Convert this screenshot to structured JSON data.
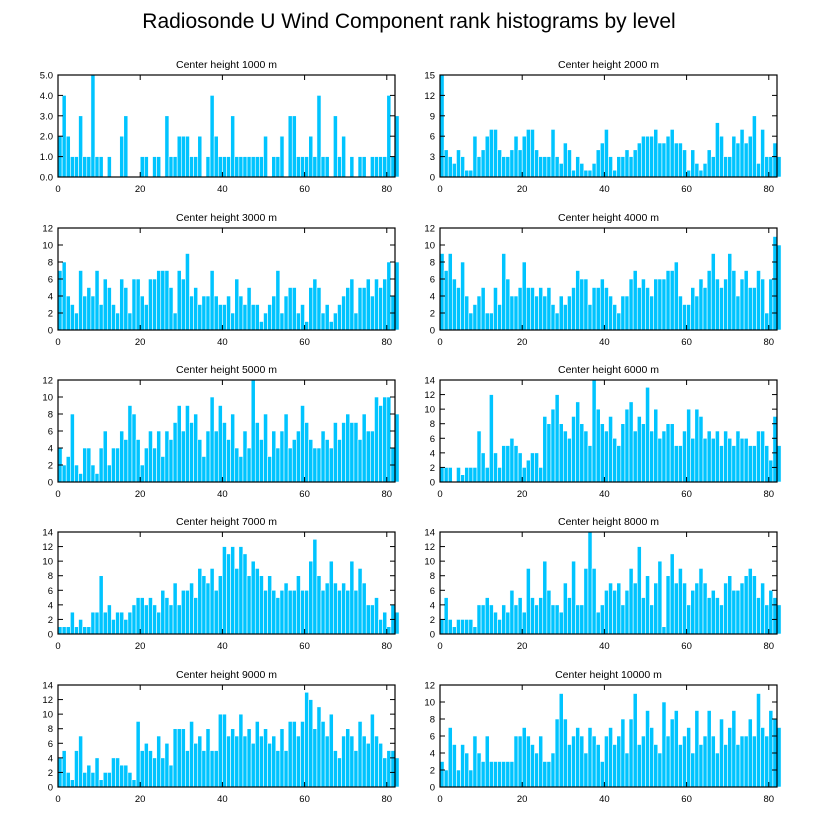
{
  "title": "Radiosonde U Wind Component rank histograms by level",
  "bar_color": "#00c4ff",
  "chart_data": [
    {
      "type": "bar",
      "title": "Center height 1000 m",
      "xlabel": "",
      "ylabel": "",
      "xlim": [
        0,
        82
      ],
      "xticks": [
        0,
        20,
        40,
        60,
        80
      ],
      "ylim": [
        0,
        5
      ],
      "yticks": [
        0,
        1,
        2,
        3,
        4,
        5
      ],
      "ytick_labels": [
        "0.0",
        "1.0",
        "2.0",
        "3.0",
        "4.0",
        "5.0"
      ],
      "values": [
        2,
        4,
        2,
        1,
        1,
        3,
        1,
        1,
        5,
        1,
        1,
        0,
        1,
        0,
        0,
        2,
        3,
        0,
        0,
        0,
        1,
        1,
        0,
        1,
        1,
        0,
        3,
        1,
        1,
        2,
        2,
        2,
        1,
        1,
        2,
        0,
        1,
        4,
        2,
        1,
        1,
        1,
        3,
        1,
        1,
        1,
        1,
        1,
        1,
        1,
        2,
        0,
        1,
        1,
        2,
        0,
        3,
        3,
        1,
        1,
        1,
        2,
        1,
        4,
        1,
        1,
        0,
        3,
        1,
        2,
        0,
        1,
        0,
        1,
        1,
        0,
        1,
        1,
        1,
        1,
        4,
        1,
        3
      ]
    },
    {
      "type": "bar",
      "title": "Center height 2000 m",
      "xlabel": "",
      "ylabel": "",
      "xlim": [
        0,
        82
      ],
      "xticks": [
        0,
        20,
        40,
        60,
        80
      ],
      "ylim": [
        0,
        15
      ],
      "yticks": [
        0,
        3,
        6,
        9,
        12,
        15
      ],
      "ytick_labels": [
        "0",
        "3",
        "6",
        "9",
        "12",
        "15"
      ],
      "values": [
        15,
        4,
        3,
        2,
        4,
        3,
        1,
        1,
        6,
        3,
        4,
        6,
        7,
        7,
        4,
        3,
        3,
        4,
        6,
        4,
        6,
        7,
        7,
        4,
        3,
        3,
        3,
        7,
        3,
        2,
        5,
        4,
        1,
        3,
        2,
        1,
        1,
        2,
        4,
        5,
        7,
        3,
        1,
        3,
        3,
        4,
        3,
        4,
        5,
        6,
        6,
        6,
        7,
        5,
        5,
        6,
        7,
        5,
        5,
        4,
        1,
        4,
        2,
        1,
        2,
        4,
        3,
        8,
        6,
        3,
        3,
        6,
        5,
        7,
        5,
        6,
        9,
        2,
        7,
        3,
        3,
        5,
        3
      ]
    },
    {
      "type": "bar",
      "title": "Center height 3000 m",
      "xlabel": "",
      "ylabel": "",
      "xlim": [
        0,
        82
      ],
      "xticks": [
        0,
        20,
        40,
        60,
        80
      ],
      "ylim": [
        0,
        12
      ],
      "yticks": [
        0,
        2,
        4,
        6,
        8,
        10,
        12
      ],
      "ytick_labels": [
        "0",
        "2",
        "4",
        "6",
        "8",
        "10",
        "12"
      ],
      "values": [
        7,
        8,
        4,
        3,
        2,
        7,
        4,
        5,
        4,
        7,
        3,
        6,
        5,
        3,
        2,
        6,
        5,
        2,
        6,
        6,
        4,
        3,
        6,
        6,
        7,
        7,
        7,
        5,
        2,
        7,
        6,
        9,
        4,
        5,
        3,
        4,
        4,
        7,
        4,
        3,
        3,
        4,
        2,
        6,
        4,
        3,
        5,
        3,
        3,
        1,
        2,
        3,
        4,
        7,
        2,
        4,
        5,
        5,
        2,
        3,
        1,
        5,
        6,
        5,
        2,
        3,
        1,
        2,
        3,
        4,
        5,
        6,
        2,
        5,
        5,
        6,
        4,
        6,
        5,
        6,
        8,
        4,
        8
      ]
    },
    {
      "type": "bar",
      "title": "Center height 4000 m",
      "xlabel": "",
      "ylabel": "",
      "xlim": [
        0,
        82
      ],
      "xticks": [
        0,
        20,
        40,
        60,
        80
      ],
      "ylim": [
        0,
        12
      ],
      "yticks": [
        0,
        2,
        4,
        6,
        8,
        10,
        12
      ],
      "ytick_labels": [
        "0",
        "2",
        "4",
        "6",
        "8",
        "10",
        "12"
      ],
      "values": [
        9,
        7,
        9,
        6,
        5,
        8,
        4,
        2,
        3,
        4,
        5,
        2,
        2,
        5,
        3,
        9,
        6,
        4,
        4,
        5,
        8,
        5,
        5,
        4,
        5,
        4,
        5,
        3,
        2,
        4,
        3,
        4,
        5,
        7,
        6,
        6,
        3,
        5,
        5,
        6,
        5,
        4,
        3,
        2,
        4,
        4,
        6,
        7,
        5,
        6,
        5,
        4,
        6,
        6,
        6,
        7,
        7,
        8,
        4,
        3,
        3,
        5,
        4,
        6,
        5,
        7,
        9,
        6,
        5,
        6,
        9,
        7,
        4,
        6,
        7,
        5,
        5,
        7,
        6,
        2,
        6,
        11,
        10
      ]
    },
    {
      "type": "bar",
      "title": "Center height 5000 m",
      "xlabel": "",
      "ylabel": "",
      "xlim": [
        0,
        82
      ],
      "xticks": [
        0,
        20,
        40,
        60,
        80
      ],
      "ylim": [
        0,
        12
      ],
      "yticks": [
        0,
        2,
        4,
        6,
        8,
        10,
        12
      ],
      "ytick_labels": [
        "0",
        "2",
        "4",
        "6",
        "8",
        "10",
        "12"
      ],
      "values": [
        4,
        2,
        3,
        8,
        2,
        1,
        4,
        4,
        2,
        1,
        4,
        6,
        2,
        4,
        4,
        6,
        5,
        9,
        8,
        5,
        2,
        4,
        6,
        4,
        6,
        3,
        6,
        5,
        7,
        9,
        6,
        9,
        7,
        8,
        5,
        3,
        6,
        10,
        6,
        9,
        7,
        5,
        8,
        4,
        3,
        6,
        4,
        12,
        7,
        5,
        8,
        3,
        6,
        4,
        6,
        8,
        4,
        5,
        6,
        9,
        7,
        5,
        4,
        4,
        6,
        5,
        4,
        7,
        5,
        7,
        8,
        7,
        7,
        5,
        8,
        6,
        6,
        10,
        9,
        10,
        10,
        4,
        8
      ]
    },
    {
      "type": "bar",
      "title": "Center height 6000 m",
      "xlabel": "",
      "ylabel": "",
      "xlim": [
        0,
        82
      ],
      "xticks": [
        0,
        20,
        40,
        60,
        80
      ],
      "ylim": [
        0,
        14
      ],
      "yticks": [
        0,
        2,
        4,
        6,
        8,
        10,
        12,
        14
      ],
      "ytick_labels": [
        "0",
        "2",
        "4",
        "6",
        "8",
        "10",
        "12",
        "14"
      ],
      "values": [
        2,
        2,
        2,
        0,
        2,
        1,
        2,
        2,
        2,
        7,
        4,
        2,
        12,
        4,
        2,
        5,
        5,
        6,
        5,
        4,
        2,
        3,
        4,
        4,
        2,
        9,
        8,
        10,
        12,
        8,
        7,
        6,
        9,
        11,
        8,
        7,
        5,
        14,
        10,
        8,
        7,
        9,
        6,
        5,
        8,
        10,
        11,
        7,
        9,
        8,
        13,
        7,
        10,
        6,
        7,
        8,
        8,
        5,
        5,
        7,
        10,
        6,
        10,
        9,
        6,
        7,
        6,
        7,
        5,
        7,
        6,
        5,
        7,
        6,
        6,
        5,
        5,
        7,
        7,
        5,
        3,
        9,
        5
      ]
    },
    {
      "type": "bar",
      "title": "Center height 7000 m",
      "xlabel": "",
      "ylabel": "",
      "xlim": [
        0,
        82
      ],
      "xticks": [
        0,
        20,
        40,
        60,
        80
      ],
      "ylim": [
        0,
        14
      ],
      "yticks": [
        0,
        2,
        4,
        6,
        8,
        10,
        12,
        14
      ],
      "ytick_labels": [
        "0",
        "2",
        "4",
        "6",
        "8",
        "10",
        "12",
        "14"
      ],
      "values": [
        1,
        1,
        1,
        3,
        1,
        2,
        1,
        1,
        3,
        3,
        8,
        3,
        4,
        2,
        3,
        3,
        2,
        3,
        4,
        5,
        5,
        4,
        5,
        4,
        3,
        6,
        5,
        4,
        7,
        4,
        6,
        6,
        7,
        5,
        9,
        8,
        7,
        9,
        6,
        8,
        12,
        11,
        12,
        9,
        12,
        11,
        8,
        10,
        9,
        8,
        6,
        8,
        6,
        5,
        6,
        7,
        6,
        6,
        8,
        6,
        6,
        10,
        13,
        8,
        6,
        7,
        10,
        7,
        6,
        7,
        6,
        10,
        6,
        9,
        7,
        4,
        4,
        5,
        2,
        3,
        1,
        4,
        3
      ]
    },
    {
      "type": "bar",
      "title": "Center height 8000 m",
      "xlabel": "",
      "ylabel": "",
      "xlim": [
        0,
        82
      ],
      "xticks": [
        0,
        20,
        40,
        60,
        80
      ],
      "ylim": [
        0,
        14
      ],
      "yticks": [
        0,
        2,
        4,
        6,
        8,
        10,
        12,
        14
      ],
      "ytick_labels": [
        "0",
        "2",
        "4",
        "6",
        "8",
        "10",
        "12",
        "14"
      ],
      "values": [
        2,
        5,
        2,
        1,
        2,
        2,
        2,
        2,
        1,
        4,
        4,
        5,
        4,
        3,
        2,
        4,
        3,
        6,
        4,
        5,
        3,
        9,
        5,
        4,
        5,
        10,
        6,
        4,
        4,
        3,
        7,
        5,
        10,
        4,
        4,
        9,
        14,
        9,
        3,
        4,
        6,
        7,
        6,
        7,
        4,
        6,
        9,
        7,
        12,
        5,
        8,
        4,
        7,
        10,
        1,
        8,
        11,
        7,
        9,
        7,
        4,
        6,
        7,
        9,
        7,
        5,
        6,
        5,
        4,
        7,
        8,
        6,
        6,
        7,
        8,
        9,
        8,
        5,
        7,
        4,
        6,
        5,
        4
      ]
    },
    {
      "type": "bar",
      "title": "Center height 9000 m",
      "xlabel": "",
      "ylabel": "",
      "xlim": [
        0,
        82
      ],
      "xticks": [
        0,
        20,
        40,
        60,
        80
      ],
      "ylim": [
        0,
        14
      ],
      "yticks": [
        0,
        2,
        4,
        6,
        8,
        10,
        12,
        14
      ],
      "ytick_labels": [
        "0",
        "2",
        "4",
        "6",
        "8",
        "10",
        "12",
        "14"
      ],
      "values": [
        4,
        5,
        2,
        1,
        5,
        7,
        2,
        3,
        2,
        4,
        1,
        2,
        2,
        4,
        4,
        3,
        3,
        2,
        1,
        9,
        5,
        6,
        5,
        4,
        7,
        4,
        6,
        3,
        8,
        8,
        8,
        5,
        9,
        6,
        7,
        5,
        8,
        5,
        5,
        10,
        10,
        7,
        8,
        7,
        10,
        7,
        8,
        6,
        9,
        7,
        8,
        6,
        7,
        5,
        8,
        5,
        9,
        9,
        7,
        9,
        13,
        12,
        8,
        11,
        9,
        7,
        10,
        5,
        4,
        7,
        8,
        7,
        5,
        9,
        7,
        6,
        10,
        7,
        6,
        4,
        5,
        5,
        4
      ]
    },
    {
      "type": "bar",
      "title": "Center height 10000 m",
      "xlabel": "",
      "ylabel": "",
      "xlim": [
        0,
        82
      ],
      "xticks": [
        0,
        20,
        40,
        60,
        80
      ],
      "ylim": [
        0,
        12
      ],
      "yticks": [
        0,
        2,
        4,
        6,
        8,
        10,
        12
      ],
      "ytick_labels": [
        "0",
        "2",
        "4",
        "6",
        "8",
        "10",
        "12"
      ],
      "values": [
        3,
        2,
        7,
        5,
        2,
        5,
        4,
        2,
        6,
        4,
        3,
        6,
        3,
        3,
        3,
        3,
        3,
        3,
        6,
        6,
        7,
        6,
        5,
        4,
        6,
        3,
        3,
        4,
        8,
        11,
        8,
        5,
        6,
        7,
        6,
        4,
        7,
        6,
        5,
        3,
        6,
        7,
        5,
        6,
        8,
        4,
        8,
        11,
        5,
        6,
        9,
        7,
        5,
        4,
        10,
        6,
        8,
        9,
        5,
        6,
        7,
        4,
        9,
        5,
        6,
        9,
        6,
        4,
        8,
        5,
        7,
        9,
        5,
        6,
        6,
        8,
        6,
        11,
        7,
        6,
        9,
        8,
        7
      ]
    }
  ]
}
